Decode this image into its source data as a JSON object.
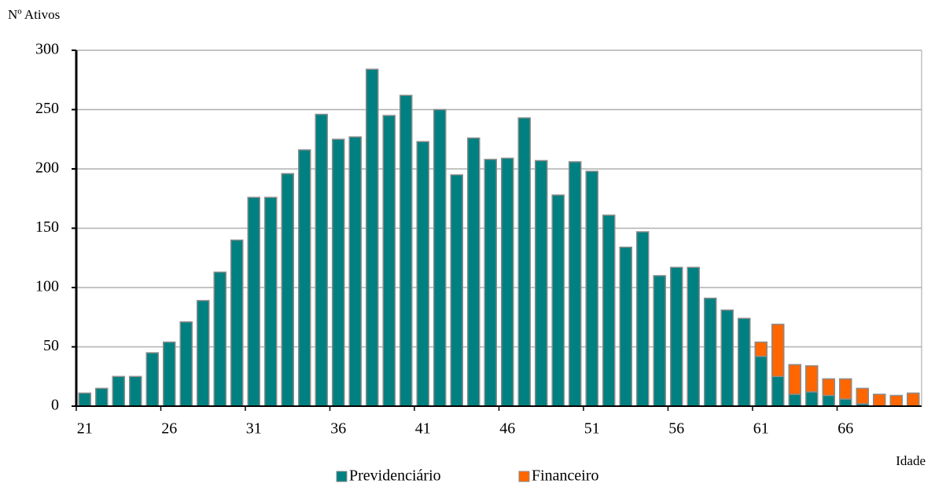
{
  "chart_data": {
    "type": "stacked-bar",
    "y_label": "Nº Ativos",
    "x_label": "Idade",
    "categories": [
      21,
      null,
      null,
      null,
      null,
      26,
      null,
      null,
      null,
      null,
      31,
      null,
      null,
      null,
      null,
      36,
      null,
      null,
      null,
      null,
      41,
      null,
      null,
      null,
      null,
      46,
      null,
      null,
      null,
      null,
      51,
      null,
      null,
      null,
      null,
      56,
      null,
      null,
      null,
      null,
      61,
      null,
      null,
      null,
      null,
      66,
      null,
      null,
      null,
      null
    ],
    "series": [
      {
        "name": "Previdenciário",
        "color": "#008080",
        "values": [
          11,
          15,
          25,
          25,
          45,
          54,
          71,
          89,
          113,
          140,
          176,
          176,
          196,
          216,
          246,
          225,
          227,
          284,
          245,
          262,
          223,
          250,
          195,
          226,
          208,
          209,
          243,
          207,
          178,
          206,
          198,
          161,
          134,
          147,
          110,
          117,
          117,
          91,
          81,
          74,
          42,
          25,
          10,
          12,
          9,
          6,
          2,
          0,
          0,
          0
        ]
      },
      {
        "name": "Financeiro",
        "color": "#ff6600",
        "values": [
          0,
          0,
          0,
          0,
          0,
          0,
          0,
          0,
          0,
          0,
          0,
          0,
          0,
          0,
          0,
          0,
          0,
          0,
          0,
          0,
          0,
          0,
          0,
          0,
          0,
          0,
          0,
          0,
          0,
          0,
          0,
          0,
          0,
          0,
          0,
          0,
          0,
          0,
          0,
          0,
          12,
          44,
          25,
          22,
          14,
          17,
          13,
          10,
          9,
          11
        ]
      }
    ],
    "ylim": [
      0,
      300
    ],
    "yticks": [
      0,
      50,
      100,
      150,
      200,
      250,
      300
    ],
    "grid": true
  }
}
